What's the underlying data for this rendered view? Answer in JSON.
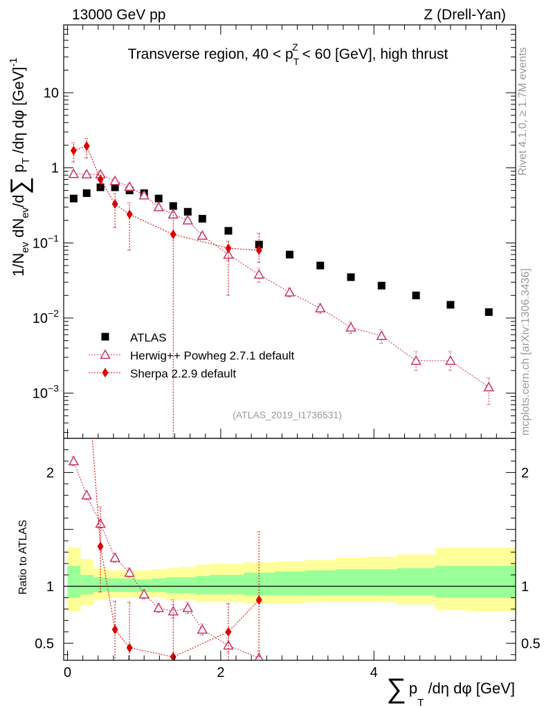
{
  "header": {
    "energy_label": "13000 GeV pp",
    "process_label": "Z (Drell-Yan)",
    "side_top": "Rivet 4.1.0, ≥ 1.7M events",
    "side_bottom": "mcplots.cern.ch [arXiv:1306.3436]",
    "analysis_id": "(ATLAS_2019_I1736531)"
  },
  "chart_data": [
    {
      "type": "scatter",
      "panel": "main",
      "title": "Transverse region, 40 < p_T^Z < 60 [GeV], high thrust",
      "ylabel": "1/N_ev dN_ev/d∑p_T/dη dφ [GeV]^-1",
      "yscale": "log",
      "xlim": [
        -0.05,
        5.85
      ],
      "ylim": [
        0.00025,
        80
      ],
      "y_ticks": [
        {
          "v": 10,
          "label": "10"
        },
        {
          "v": 1,
          "label": "1"
        },
        {
          "v": 0.1,
          "label": "10⁻¹"
        },
        {
          "v": 0.01,
          "label": "10⁻²"
        },
        {
          "v": 0.001,
          "label": "10⁻³"
        }
      ],
      "legend": {
        "position": "lower-left"
      },
      "series": [
        {
          "name": "ATLAS",
          "marker": "square",
          "color": "#000000",
          "x": [
            0.08,
            0.25,
            0.43,
            0.62,
            0.81,
            1.0,
            1.19,
            1.38,
            1.57,
            1.76,
            2.1,
            2.5,
            2.9,
            3.3,
            3.7,
            4.1,
            4.55,
            5.0,
            5.5
          ],
          "y": [
            0.39,
            0.46,
            0.55,
            0.55,
            0.5,
            0.46,
            0.39,
            0.31,
            0.26,
            0.21,
            0.145,
            0.095,
            0.07,
            0.05,
            0.035,
            0.027,
            0.02,
            0.015,
            0.012
          ]
        },
        {
          "name": "Herwig++ Powheg 2.7.1 default",
          "marker": "triangle-open",
          "color": "#cc3366",
          "x": [
            0.08,
            0.25,
            0.43,
            0.62,
            0.81,
            1.0,
            1.19,
            1.38,
            1.57,
            1.76,
            2.1,
            2.5,
            2.9,
            3.3,
            3.7,
            4.1,
            4.55,
            5.0,
            5.5
          ],
          "y": [
            0.83,
            0.82,
            0.82,
            0.67,
            0.56,
            0.43,
            0.3,
            0.24,
            0.2,
            0.125,
            0.07,
            0.038,
            0.022,
            0.0135,
            0.0075,
            0.0058,
            0.0027,
            0.0027,
            0.0012
          ],
          "err_lo": [
            0.08,
            0.07,
            0.07,
            0.06,
            0.05,
            0.04,
            0.03,
            0.02,
            0.02,
            0.012,
            0.012,
            0.008,
            0.003,
            0.002,
            0.0013,
            0.0012,
            0.0007,
            0.0007,
            0.0005
          ],
          "err_hi": [
            0.08,
            0.07,
            0.07,
            0.06,
            0.05,
            0.04,
            0.03,
            0.02,
            0.02,
            0.012,
            0.012,
            0.008,
            0.003,
            0.002,
            0.0013,
            0.0012,
            0.0009,
            0.0009,
            0.0004
          ]
        },
        {
          "name": "Sherpa 2.2.9 default",
          "marker": "diamond",
          "color": "#dd0000",
          "x": [
            0.08,
            0.25,
            0.43,
            0.62,
            0.81,
            1.38,
            2.1,
            2.5
          ],
          "y": [
            1.7,
            1.95,
            0.7,
            0.33,
            0.24,
            0.13,
            0.085,
            0.08
          ],
          "err_lo": [
            0.5,
            0.6,
            0.15,
            0.17,
            0.16,
            0.1298,
            0.065,
            0.025
          ],
          "err_hi": [
            0.45,
            0.5,
            0.1,
            0.12,
            0.1,
            0.15,
            0.02,
            0.055
          ]
        }
      ]
    },
    {
      "type": "scatter",
      "panel": "ratio",
      "ylabel": "Ratio to ATLAS",
      "xlabel": "∑p_T/dη dφ [GeV]",
      "xlim": [
        -0.05,
        5.85
      ],
      "ylim": [
        0.35,
        2.3
      ],
      "x_ticks": [
        0,
        2,
        4
      ],
      "y_ticks": [
        0.5,
        1,
        2
      ],
      "bands": {
        "edges": [
          0,
          0.17,
          0.34,
          0.52,
          0.71,
          0.9,
          1.1,
          1.29,
          1.48,
          1.67,
          1.86,
          2.3,
          2.7,
          3.1,
          3.5,
          3.9,
          4.3,
          4.8,
          5.2,
          5.85
        ],
        "stat_lo": [
          0.9,
          0.93,
          0.95,
          0.95,
          0.95,
          0.95,
          0.95,
          0.94,
          0.94,
          0.93,
          0.93,
          0.92,
          0.92,
          0.92,
          0.92,
          0.92,
          0.92,
          0.9,
          0.9
        ],
        "stat_hi": [
          1.18,
          1.1,
          1.08,
          1.07,
          1.07,
          1.06,
          1.07,
          1.08,
          1.08,
          1.09,
          1.1,
          1.12,
          1.13,
          1.14,
          1.15,
          1.15,
          1.16,
          1.18,
          1.18
        ],
        "syst_lo": [
          0.78,
          0.83,
          0.88,
          0.9,
          0.9,
          0.9,
          0.9,
          0.88,
          0.88,
          0.86,
          0.86,
          0.85,
          0.85,
          0.86,
          0.86,
          0.86,
          0.84,
          0.79,
          0.78
        ],
        "syst_hi": [
          1.34,
          1.24,
          1.16,
          1.14,
          1.14,
          1.14,
          1.15,
          1.16,
          1.17,
          1.19,
          1.2,
          1.21,
          1.22,
          1.23,
          1.25,
          1.26,
          1.28,
          1.34,
          1.34
        ],
        "stat_color": "#99ff99",
        "syst_color": "#ffff99"
      },
      "series": [
        {
          "name": "Herwig++ Powheg 2.7.1 default",
          "marker": "triangle-open",
          "color": "#cc3366",
          "x": [
            0.08,
            0.25,
            0.43,
            0.62,
            0.81,
            1.0,
            1.19,
            1.38,
            1.57,
            1.76,
            2.1,
            2.5
          ],
          "y": [
            2.1,
            1.8,
            1.55,
            1.25,
            1.12,
            0.93,
            0.81,
            0.78,
            0.81,
            0.62,
            0.48,
            0.37
          ],
          "err": [
            0.04,
            0.04,
            0.04,
            0.04,
            0.04,
            0.04,
            0.04,
            0.06,
            0.05,
            0.05,
            0.06,
            0.06
          ]
        },
        {
          "name": "Sherpa 2.2.9 default",
          "marker": "diamond",
          "color": "#dd0000",
          "x": [
            0.43,
            0.62,
            0.81,
            1.38,
            2.1,
            2.5
          ],
          "y": [
            1.35,
            0.62,
            0.46,
            0.38,
            0.6,
            0.88
          ],
          "err_lo": [
            0.4,
            0.3,
            0.15,
            0.3,
            0.25,
            0.5
          ],
          "err_hi": [
            0.35,
            0.25,
            0.4,
            0.5,
            0.25,
            0.6
          ]
        }
      ]
    }
  ]
}
